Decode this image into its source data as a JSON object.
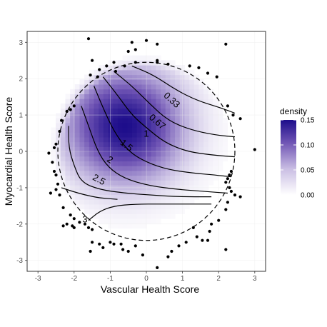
{
  "chart_data": {
    "type": "heatmap",
    "xlabel": "Vascular Health Score",
    "ylabel": "Myocardial Health Score",
    "xlim": [
      -3.3,
      3.3
    ],
    "ylim": [
      -3.3,
      3.3
    ],
    "x_ticks": [
      -3,
      -2,
      -1,
      0,
      1,
      2,
      3
    ],
    "y_ticks": [
      -3,
      -2,
      -1,
      0,
      1,
      2,
      3
    ],
    "grid": true,
    "legend": {
      "title": "density",
      "position": "right",
      "ticks": [
        0.15,
        0.1,
        0.05,
        0.0
      ],
      "tick_labels": [
        "0.15",
        "0.10",
        "0.05",
        "0.00"
      ],
      "color_low": "#ffffff",
      "color_high": "#1d0d8b",
      "range": [
        0,
        0.15
      ]
    },
    "density": {
      "peak": [
        -0.6,
        0.7
      ],
      "spread": [
        1.05,
        1.0
      ],
      "max": 0.15
    },
    "boundary_circle": {
      "center": [
        0,
        0
      ],
      "radius": 2.45,
      "style": "dashed"
    },
    "contours": [
      {
        "label": "0.33",
        "label_pos": [
          0.65,
          1.35
        ],
        "angle": 42,
        "points": [
          [
            -0.4,
            2.35
          ],
          [
            0.2,
            2.1
          ],
          [
            0.8,
            1.7
          ],
          [
            1.4,
            1.4
          ],
          [
            2.05,
            1.2
          ],
          [
            2.45,
            1.05
          ]
        ]
      },
      {
        "label": "0.67",
        "label_pos": [
          0.25,
          0.75
        ],
        "angle": 40,
        "points": [
          [
            -0.9,
            2.2
          ],
          [
            -0.4,
            1.8
          ],
          [
            0.1,
            1.3
          ],
          [
            0.6,
            0.85
          ],
          [
            1.2,
            0.6
          ],
          [
            1.9,
            0.45
          ],
          [
            2.45,
            0.4
          ]
        ]
      },
      {
        "label": "1",
        "label_pos": [
          0.0,
          0.4
        ],
        "angle": 0,
        "points": [
          [
            -1.2,
            2.05
          ],
          [
            -0.8,
            1.55
          ],
          [
            -0.4,
            1.0
          ],
          [
            0.0,
            0.65
          ],
          [
            0.5,
            0.25
          ],
          [
            1.1,
            0.0
          ],
          [
            1.8,
            -0.1
          ],
          [
            2.45,
            -0.15
          ]
        ]
      },
      {
        "label": "1.5",
        "label_pos": [
          -0.6,
          0.1
        ],
        "angle": 38,
        "points": [
          [
            -1.45,
            1.8
          ],
          [
            -1.2,
            1.2
          ],
          [
            -0.9,
            0.55
          ],
          [
            -0.5,
            0.0
          ],
          [
            0.0,
            -0.3
          ],
          [
            0.6,
            -0.5
          ],
          [
            1.3,
            -0.6
          ],
          [
            1.9,
            -0.65
          ],
          [
            2.35,
            -0.7
          ]
        ]
      },
      {
        "label": "2",
        "label_pos": [
          -1.05,
          -0.3
        ],
        "angle": 32,
        "points": [
          [
            -1.8,
            1.25
          ],
          [
            -1.6,
            0.7
          ],
          [
            -1.35,
            0.0
          ],
          [
            -1.05,
            -0.45
          ],
          [
            -0.6,
            -0.75
          ],
          [
            0.1,
            -0.95
          ],
          [
            0.9,
            -1.05
          ],
          [
            1.6,
            -1.1
          ],
          [
            2.25,
            -1.15
          ]
        ]
      },
      {
        "label": "2.5",
        "label_pos": [
          -1.35,
          -0.85
        ],
        "angle": 28,
        "points": [
          [
            -2.15,
            0.7
          ],
          [
            -2.15,
            0.1
          ],
          [
            -2.0,
            -0.4
          ],
          [
            -1.8,
            -0.85
          ],
          [
            -1.3,
            -1.05
          ],
          [
            -0.6,
            -1.15
          ],
          [
            0.1,
            -1.2
          ],
          [
            0.9,
            -1.25
          ],
          [
            1.8,
            -1.25
          ]
        ]
      },
      {
        "label": "3",
        "label_pos": [
          -1.7,
          -1.95
        ],
        "angle": 0,
        "points": [
          [
            -2.35,
            -1.0
          ],
          [
            -2.05,
            -1.1
          ],
          [
            -1.7,
            -1.2
          ],
          [
            -1.3,
            -1.28
          ],
          [
            -0.8,
            -1.32
          ]
        ]
      },
      {
        "label": "",
        "label_pos": [
          0,
          0
        ],
        "angle": 0,
        "points": [
          [
            -1.6,
            -1.9
          ],
          [
            -1.3,
            -1.65
          ],
          [
            -0.9,
            -1.5
          ],
          [
            -0.3,
            -1.45
          ],
          [
            0.4,
            -1.45
          ],
          [
            1.2,
            -1.45
          ],
          [
            1.8,
            -1.45
          ]
        ]
      }
    ],
    "points": [
      [
        -1.6,
        3.1
      ],
      [
        -0.4,
        3.0
      ],
      [
        0.3,
        2.95
      ],
      [
        0.0,
        3.05
      ],
      [
        -0.3,
        2.8
      ],
      [
        -0.5,
        2.75
      ],
      [
        2.2,
        2.95
      ],
      [
        -1.5,
        2.5
      ],
      [
        -1.3,
        2.25
      ],
      [
        -1.55,
        2.1
      ],
      [
        -1.35,
        2.05
      ],
      [
        -1.1,
        2.35
      ],
      [
        -0.85,
        2.2
      ],
      [
        -0.6,
        2.35
      ],
      [
        -0.3,
        2.45
      ],
      [
        0.3,
        2.45
      ],
      [
        0.6,
        2.4
      ],
      [
        1.2,
        2.35
      ],
      [
        1.45,
        2.3
      ],
      [
        1.7,
        2.15
      ],
      [
        1.95,
        2.05
      ],
      [
        -2.0,
        1.25
      ],
      [
        -2.1,
        1.15
      ],
      [
        -2.2,
        1.1
      ],
      [
        -2.35,
        0.85
      ],
      [
        -2.4,
        0.55
      ],
      [
        2.25,
        1.25
      ],
      [
        2.4,
        1.0
      ],
      [
        2.6,
        0.9
      ],
      [
        -2.5,
        0.2
      ],
      [
        -2.55,
        0.1
      ],
      [
        -2.7,
        -0.05
      ],
      [
        -2.6,
        -0.3
      ],
      [
        -2.55,
        -0.55
      ],
      [
        -2.5,
        -0.65
      ],
      [
        -2.45,
        -0.9
      ],
      [
        -2.5,
        -1.05
      ],
      [
        -2.65,
        -1.15
      ],
      [
        -2.4,
        -1.2
      ],
      [
        -2.3,
        -1.55
      ],
      [
        3.0,
        0.05
      ],
      [
        2.3,
        -0.65
      ],
      [
        2.35,
        -0.55
      ],
      [
        2.25,
        -0.75
      ],
      [
        2.2,
        -0.85
      ],
      [
        2.3,
        -1.0
      ],
      [
        2.35,
        -1.1
      ],
      [
        2.45,
        -1.2
      ],
      [
        2.6,
        -1.25
      ],
      [
        2.25,
        -1.4
      ],
      [
        2.2,
        -1.6
      ],
      [
        -2.1,
        -1.75
      ],
      [
        -2.0,
        -1.85
      ],
      [
        -2.2,
        -2.0
      ],
      [
        -2.3,
        -2.05
      ],
      [
        -2.05,
        -2.05
      ],
      [
        -2.0,
        -2.1
      ],
      [
        -1.85,
        -1.95
      ],
      [
        -1.7,
        -2.0
      ],
      [
        -1.6,
        -2.1
      ],
      [
        -1.5,
        -2.15
      ],
      [
        -1.5,
        -2.5
      ],
      [
        -1.55,
        -2.75
      ],
      [
        -1.3,
        -2.55
      ],
      [
        -1.2,
        -2.65
      ],
      [
        -1.0,
        -2.5
      ],
      [
        -0.9,
        -2.55
      ],
      [
        -0.7,
        -2.55
      ],
      [
        -0.65,
        -2.7
      ],
      [
        -0.5,
        -2.75
      ],
      [
        -0.3,
        -2.6
      ],
      [
        -0.1,
        -2.85
      ],
      [
        0.3,
        -3.2
      ],
      [
        0.6,
        -2.9
      ],
      [
        0.7,
        -2.75
      ],
      [
        0.9,
        -2.6
      ],
      [
        1.1,
        -2.5
      ],
      [
        1.4,
        -2.35
      ],
      [
        1.55,
        -2.45
      ],
      [
        1.75,
        -2.2
      ],
      [
        1.8,
        -2.0
      ],
      [
        2.0,
        -1.9
      ],
      [
        2.2,
        -2.7
      ],
      [
        1.3,
        -2.1
      ],
      [
        1.7,
        -2.45
      ],
      [
        0.3,
        2.5
      ],
      [
        -0.9,
        2.45
      ]
    ]
  }
}
